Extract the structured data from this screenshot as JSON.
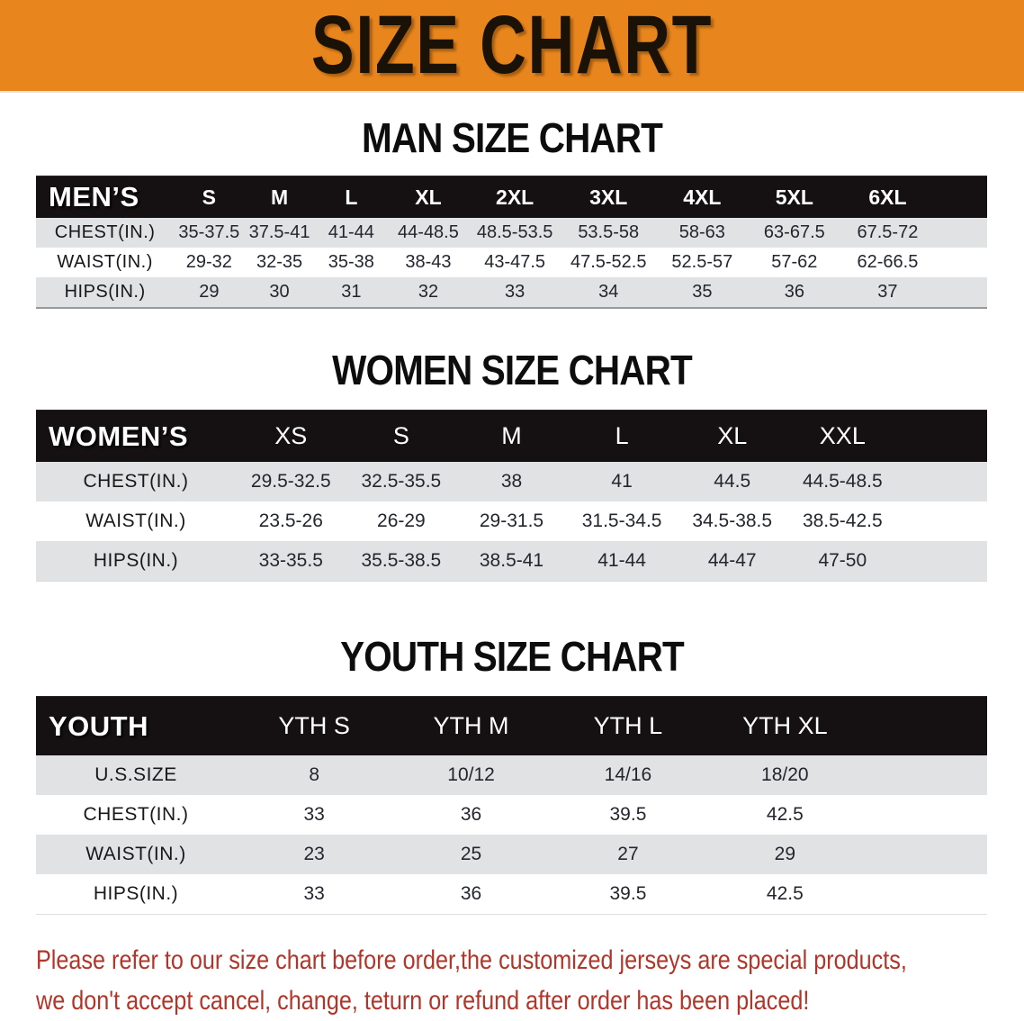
{
  "banner": {
    "title": "SIZE CHART"
  },
  "sections": {
    "men": {
      "heading": "MAN SIZE CHART",
      "corner_label": "MEN’S",
      "sizes": [
        "S",
        "M",
        "L",
        "XL",
        "2XL",
        "3XL",
        "4XL",
        "5XL",
        "6XL"
      ],
      "rows": [
        {
          "label": "CHEST(IN.)",
          "values": [
            "35-37.5",
            "37.5-41",
            "41-44",
            "44-48.5",
            "48.5-53.5",
            "53.5-58",
            "58-63",
            "63-67.5",
            "67.5-72"
          ]
        },
        {
          "label": "WAIST(IN.)",
          "values": [
            "29-32",
            "32-35",
            "35-38",
            "38-43",
            "43-47.5",
            "47.5-52.5",
            "52.5-57",
            "57-62",
            "62-66.5"
          ]
        },
        {
          "label": "HIPS(IN.)",
          "values": [
            "29",
            "30",
            "31",
            "32",
            "33",
            "34",
            "35",
            "36",
            "37"
          ]
        }
      ]
    },
    "women": {
      "heading": "WOMEN SIZE CHART",
      "corner_label": "WOMEN’S",
      "sizes": [
        "XS",
        "S",
        "M",
        "L",
        "XL",
        "XXL"
      ],
      "rows": [
        {
          "label": "CHEST(IN.)",
          "values": [
            "29.5-32.5",
            "32.5-35.5",
            "38",
            "41",
            "44.5",
            "44.5-48.5"
          ]
        },
        {
          "label": "WAIST(IN.)",
          "values": [
            "23.5-26",
            "26-29",
            "29-31.5",
            "31.5-34.5",
            "34.5-38.5",
            "38.5-42.5"
          ]
        },
        {
          "label": "HIPS(IN.)",
          "values": [
            "33-35.5",
            "35.5-38.5",
            "38.5-41",
            "41-44",
            "44-47",
            "47-50"
          ]
        }
      ]
    },
    "youth": {
      "heading": "YOUTH SIZE CHART",
      "corner_label": "YOUTH",
      "sizes": [
        "YTH S",
        "YTH M",
        "YTH L",
        "YTH XL"
      ],
      "rows": [
        {
          "label": "U.S.SIZE",
          "values": [
            "8",
            "10/12",
            "14/16",
            "18/20"
          ]
        },
        {
          "label": "CHEST(IN.)",
          "values": [
            "33",
            "36",
            "39.5",
            "42.5"
          ]
        },
        {
          "label": "WAIST(IN.)",
          "values": [
            "23",
            "25",
            "27",
            "29"
          ]
        },
        {
          "label": "HIPS(IN.)",
          "values": [
            "33",
            "36",
            "39.5",
            "42.5"
          ]
        }
      ]
    }
  },
  "disclaimer": {
    "line1": "Please refer to our size chart before order,the customized jerseys are special products,",
    "line2": "we don't accept cancel, change, teturn or refund after order has been placed!"
  },
  "colors": {
    "banner_bg": "#E8861D",
    "header_band": "#151011",
    "row_gray": "#E0E2E3",
    "disclaimer_red": "#B13529"
  }
}
